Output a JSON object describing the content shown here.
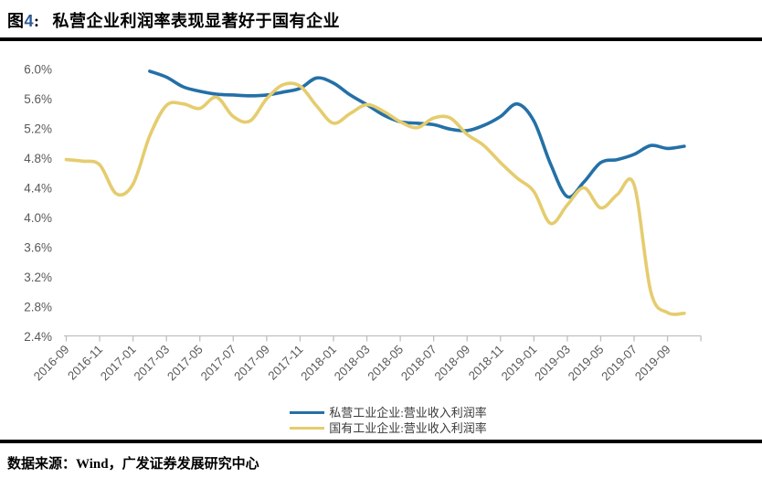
{
  "header": {
    "figure_label": "图",
    "figure_number": "4",
    "colon": ":",
    "title": "私营企业利润率表现显著好于国有企业"
  },
  "footer": {
    "source": "数据来源：Wind，广发证券发展研究中心"
  },
  "colors": {
    "private_series": "#2470A8",
    "soe_series": "#E5CC6E",
    "figure_number": "#2F5B96",
    "axis_label": "#595959",
    "axis_line": "#BFBFBF"
  },
  "chart_data": {
    "type": "line",
    "smoothed": true,
    "title": "",
    "xlabel": "",
    "ylabel": "",
    "grid": false,
    "legend_position": "bottom",
    "ylim": [
      2.4,
      6.0
    ],
    "y_tick_step": 0.4,
    "y_tick_labels": [
      "6.0%",
      "5.6%",
      "5.2%",
      "4.8%",
      "4.4%",
      "4.0%",
      "3.6%",
      "3.2%",
      "2.8%",
      "2.4%"
    ],
    "x_tick_labels": [
      "2016-09",
      "2016-11",
      "2017-01",
      "2017-03",
      "2017-05",
      "2017-07",
      "2017-09",
      "2017-11",
      "2018-01",
      "2018-03",
      "2018-05",
      "2018-07",
      "2018-09",
      "2018-11",
      "2019-01",
      "2019-03",
      "2019-05",
      "2019-07",
      "2019-09"
    ],
    "categories": [
      "2016-09",
      "2016-10",
      "2016-11",
      "2016-12",
      "2017-01",
      "2017-02",
      "2017-03",
      "2017-04",
      "2017-05",
      "2017-06",
      "2017-07",
      "2017-08",
      "2017-09",
      "2017-10",
      "2017-11",
      "2017-12",
      "2018-01",
      "2018-02",
      "2018-03",
      "2018-04",
      "2018-05",
      "2018-06",
      "2018-07",
      "2018-08",
      "2018-09",
      "2018-10",
      "2018-11",
      "2018-12",
      "2019-01",
      "2019-02",
      "2019-03",
      "2019-04",
      "2019-05",
      "2019-06",
      "2019-07",
      "2019-08",
      "2019-09",
      "2019-10"
    ],
    "series": [
      {
        "name": "私营工业企业:营业收入利润率",
        "color": "#2470A8",
        "values": [
          null,
          null,
          null,
          null,
          null,
          5.97,
          5.89,
          5.76,
          5.7,
          5.66,
          5.65,
          5.64,
          5.65,
          5.69,
          5.74,
          5.88,
          5.81,
          5.65,
          5.52,
          5.38,
          5.29,
          5.27,
          5.25,
          5.19,
          5.17,
          5.24,
          5.36,
          5.53,
          5.3,
          4.72,
          4.28,
          4.48,
          4.74,
          4.78,
          4.85,
          4.97,
          4.93,
          4.96
        ]
      },
      {
        "name": "国有工业企业:营业收入利润率",
        "color": "#E5CC6E",
        "values": [
          4.78,
          4.76,
          4.71,
          4.32,
          4.45,
          5.1,
          5.51,
          5.53,
          5.47,
          5.62,
          5.36,
          5.3,
          5.6,
          5.79,
          5.77,
          5.5,
          5.27,
          5.4,
          5.52,
          5.43,
          5.29,
          5.21,
          5.34,
          5.34,
          5.12,
          4.97,
          4.74,
          4.53,
          4.35,
          3.92,
          4.17,
          4.4,
          4.13,
          4.31,
          4.44,
          3.0,
          2.72,
          2.71
        ]
      }
    ]
  }
}
